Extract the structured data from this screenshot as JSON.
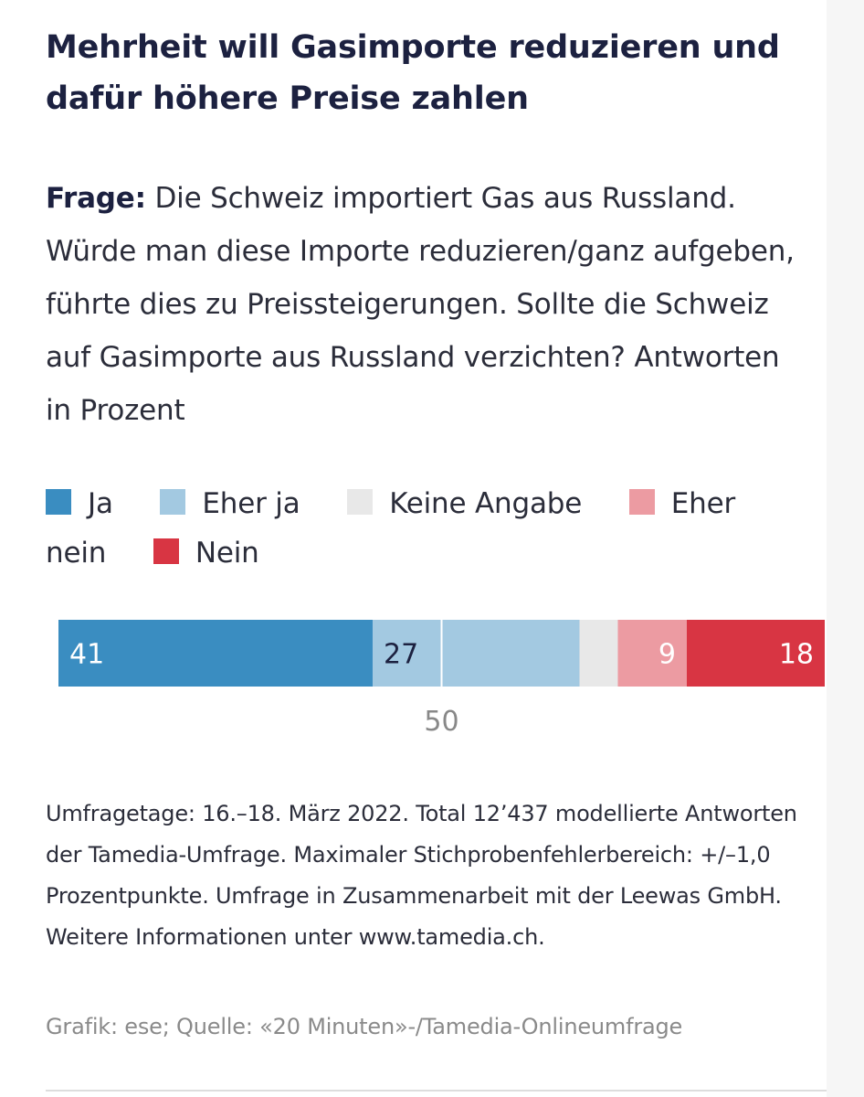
{
  "title": "Mehrheit will Gasimporte reduzieren und dafür höhere Preise zahlen",
  "question_label": "Frage:",
  "question_text": " Die Schweiz importiert Gas aus Russland. Würde man diese Importe reduzieren/ganz aufgeben, führte dies zu Preissteigerungen. Sollte die Schweiz auf Gasimporte aus Russland verzichten? Antworten in Prozent",
  "colors": {
    "ja": "#3a8dc1",
    "eher_ja": "#a3c9e1",
    "keine_angabe": "#e8e8e8",
    "eher_nein": "#ec9ba2",
    "nein": "#d83543",
    "midline": "#ffffff",
    "label_dark": "#1c2140",
    "label_light": "#ffffff",
    "axis_label": "#888888"
  },
  "chart_data": {
    "type": "bar",
    "orientation": "horizontal-stacked",
    "title": "Mehrheit will Gasimporte reduzieren und dafür höhere Preise zahlen",
    "unit": "Prozent",
    "xlim": [
      0,
      100
    ],
    "reference_line": 50,
    "axis_tick_label": "50",
    "legend_placement": "top",
    "series": [
      {
        "name": "Ja",
        "value": 41,
        "label": "41",
        "label_align": "start",
        "color_key": "ja"
      },
      {
        "name": "Eher ja",
        "value": 27,
        "label": "27",
        "label_align": "start",
        "color_key": "eher_ja"
      },
      {
        "name": "Keine Angabe",
        "value": 5,
        "label": "",
        "label_align": "none",
        "color_key": "keine_angabe"
      },
      {
        "name": "Eher nein",
        "value": 9,
        "label": "9",
        "label_align": "end",
        "color_key": "eher_nein"
      },
      {
        "name": "Nein",
        "value": 18,
        "label": "18",
        "label_align": "end",
        "color_key": "nein"
      }
    ]
  },
  "footnote": "Umfragetage: 16.–18. März 2022. Total 12’437 modellierte Antworten der Tamedia-Umfrage. Maximaler Stichprobenfehlerbereich: +/–1,0 Prozentpunkte. Umfrage in Zusammenarbeit mit der Leewas GmbH. Weitere Informationen unter www.tamedia.ch.",
  "source": "Grafik: ese; Quelle: «20 Minuten»-/Tamedia-Onlineumfrage"
}
